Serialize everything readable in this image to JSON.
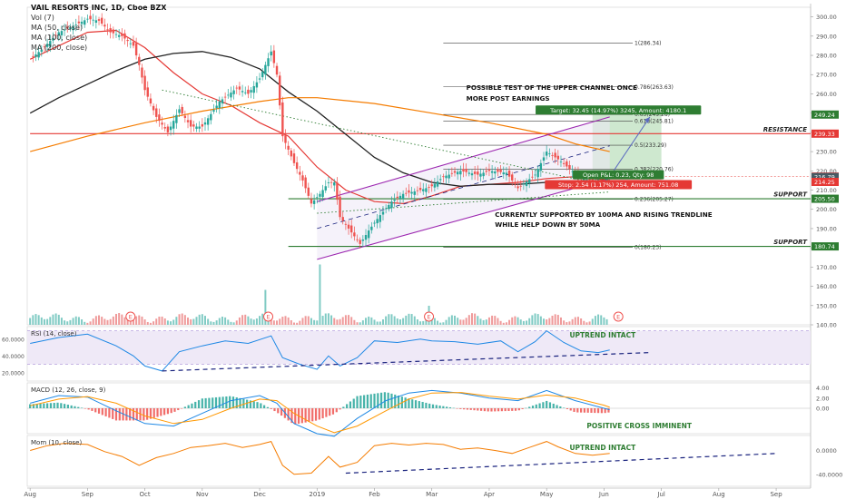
{
  "header": {
    "title": "VAIL RESORTS INC, 1D, Cboe BZX",
    "indicators": [
      "Vol (7)",
      "MA (50, close)",
      "MA (100, close)",
      "MA (200, close)"
    ]
  },
  "colors": {
    "up": "#26a69a",
    "down": "#ef5350",
    "ma50": "#e53935",
    "ma100": "#212121",
    "ma200": "#f57c00",
    "channel": "#9c27b0",
    "resistance": "#e53935",
    "support": "#2e7d32",
    "dashed": "#1a237e",
    "rsi_fill": "#ede7f6",
    "target_fill": "#a5d6a7",
    "stop_fill": "#ef9a9a"
  },
  "chart_data": [
    {
      "type": "line",
      "panel": "price",
      "title": "VAIL RESORTS INC, 1D, Cboe BZX",
      "ylim": [
        140,
        305
      ],
      "y_ticks": [
        300,
        290,
        280,
        270,
        260,
        250,
        240,
        230,
        220,
        210,
        200,
        190,
        180,
        170,
        160,
        150,
        140
      ],
      "y_tick_labels": [
        "300.00",
        "290.00",
        "280.00",
        "270.00",
        "260.00",
        "250.00",
        "240.00",
        "230.00",
        "220.00",
        "210.00",
        "200.00",
        "190.00",
        "180.00",
        "170.00",
        "160.00",
        "150.00",
        "140.00"
      ],
      "x_labels": [
        {
          "label": "Aug",
          "t": 0
        },
        {
          "label": "Sep",
          "t": 1
        },
        {
          "label": "Oct",
          "t": 2
        },
        {
          "label": "Nov",
          "t": 3
        },
        {
          "label": "Dec",
          "t": 4
        },
        {
          "label": "2019",
          "t": 5
        },
        {
          "label": "Feb",
          "t": 6
        },
        {
          "label": "Mar",
          "t": 7
        },
        {
          "label": "Apr",
          "t": 8
        },
        {
          "label": "May",
          "t": 9
        },
        {
          "label": "Jun",
          "t": 10
        },
        {
          "label": "Jul",
          "t": 11
        },
        {
          "label": "Aug",
          "t": 12
        },
        {
          "label": "Sep",
          "t": 13
        }
      ],
      "x_range": [
        -0.05,
        13.6
      ],
      "last_t": 10.1,
      "close_path": [
        [
          0,
          278
        ],
        [
          0.2,
          283
        ],
        [
          0.5,
          292
        ],
        [
          0.8,
          296
        ],
        [
          1,
          299
        ],
        [
          1.2,
          298
        ],
        [
          1.4,
          292
        ],
        [
          1.6,
          290
        ],
        [
          1.8,
          285
        ],
        [
          1.9,
          275
        ],
        [
          2,
          262
        ],
        [
          2.2,
          248
        ],
        [
          2.4,
          240
        ],
        [
          2.6,
          252
        ],
        [
          2.8,
          243
        ],
        [
          3,
          243
        ],
        [
          3.3,
          256
        ],
        [
          3.6,
          263
        ],
        [
          3.8,
          260
        ],
        [
          4,
          268
        ],
        [
          4.2,
          282
        ],
        [
          4.3,
          270
        ],
        [
          4.4,
          238
        ],
        [
          4.6,
          224
        ],
        [
          4.75,
          215
        ],
        [
          4.9,
          203
        ],
        [
          5.05,
          208
        ],
        [
          5.2,
          214
        ],
        [
          5.3,
          214
        ],
        [
          5.4,
          196
        ],
        [
          5.6,
          188
        ],
        [
          5.75,
          182
        ],
        [
          5.9,
          189
        ],
        [
          6.1,
          197
        ],
        [
          6.3,
          204
        ],
        [
          6.5,
          208
        ],
        [
          6.8,
          210
        ],
        [
          7,
          212
        ],
        [
          7.2,
          217
        ],
        [
          7.5,
          220
        ],
        [
          7.8,
          218
        ],
        [
          8,
          220
        ],
        [
          8.3,
          219
        ],
        [
          8.5,
          211
        ],
        [
          8.8,
          218
        ],
        [
          9,
          230
        ],
        [
          9.2,
          226
        ],
        [
          9.4,
          221
        ],
        [
          9.6,
          216
        ],
        [
          9.8,
          215
        ],
        [
          10,
          216
        ],
        [
          10.1,
          217
        ]
      ],
      "ma_lines": [
        {
          "name": "MA (50, close)",
          "color": "#e53935",
          "points": [
            [
              0,
              278
            ],
            [
              1,
              292
            ],
            [
              1.5,
              293
            ],
            [
              2,
              284
            ],
            [
              2.5,
              271
            ],
            [
              3,
              260
            ],
            [
              3.5,
              254
            ],
            [
              4,
              245
            ],
            [
              4.5,
              238
            ],
            [
              5,
              222
            ],
            [
              5.5,
              210
            ],
            [
              6,
              204
            ],
            [
              6.5,
              203
            ],
            [
              7,
              207
            ],
            [
              7.5,
              212
            ],
            [
              8,
              213
            ],
            [
              8.5,
              214
            ],
            [
              9,
              216
            ],
            [
              9.5,
              217
            ],
            [
              10.1,
              215
            ]
          ]
        },
        {
          "name": "MA (100, close)",
          "color": "#212121",
          "points": [
            [
              0,
              250
            ],
            [
              0.5,
              258
            ],
            [
              1,
              265
            ],
            [
              1.5,
              272
            ],
            [
              2,
              278
            ],
            [
              2.5,
              281
            ],
            [
              3,
              282
            ],
            [
              3.5,
              279
            ],
            [
              4,
              273
            ],
            [
              4.5,
              261
            ],
            [
              5,
              251
            ],
            [
              5.5,
              239
            ],
            [
              6,
              227
            ],
            [
              6.5,
              219
            ],
            [
              7,
              214
            ],
            [
              7.5,
              212
            ],
            [
              8,
              213
            ],
            [
              8.5,
              213
            ],
            [
              9,
              214
            ],
            [
              9.5,
              214
            ],
            [
              10.1,
              214
            ]
          ]
        },
        {
          "name": "MA (200, close)",
          "color": "#f57c00",
          "points": [
            [
              0,
              230
            ],
            [
              1,
              238
            ],
            [
              2,
              245
            ],
            [
              3,
              251
            ],
            [
              4,
              256
            ],
            [
              4.5,
              258
            ],
            [
              5,
              258
            ],
            [
              6,
              255
            ],
            [
              7,
              250
            ],
            [
              8,
              245
            ],
            [
              9,
              239
            ],
            [
              9.5,
              234
            ],
            [
              10.1,
              230
            ]
          ]
        }
      ],
      "horizontal_lines": [
        {
          "label": "RESISTANCE",
          "value": 239.33,
          "color": "#e53935",
          "t_start": 0
        },
        {
          "label": "SUPPORT",
          "value": 205.5,
          "color": "#2e7d32",
          "t_start": 4.5
        },
        {
          "label": "SUPPORT",
          "value": 180.74,
          "color": "#2e7d32",
          "t_start": 4.5
        }
      ],
      "fib_levels": [
        {
          "label": "1(286.34)",
          "value": 286.34
        },
        {
          "label": "0.786(263.63)",
          "value": 263.63
        },
        {
          "label": "0.65(249.28)",
          "value": 249.28
        },
        {
          "label": "0.618(245.81)",
          "value": 245.81
        },
        {
          "label": "0.5(233.29)",
          "value": 233.29
        },
        {
          "label": "0.382(220.76)",
          "value": 220.76
        },
        {
          "label": "0.236(205.27)",
          "value": 205.27
        },
        {
          "label": "0(180.23)",
          "value": 180.23
        }
      ],
      "fib_t_range": [
        7.2,
        10.5
      ],
      "channel": {
        "upper": [
          [
            5,
            204
          ],
          [
            10.1,
            248
          ]
        ],
        "mid": [
          [
            5,
            190
          ],
          [
            10.1,
            233
          ]
        ],
        "lower": [
          [
            5,
            174
          ],
          [
            10.1,
            216
          ]
        ]
      },
      "trend_dotted": [
        [
          2.3,
          262
        ],
        [
          10.1,
          212
        ]
      ],
      "trend_dotted_support": [
        [
          5,
          198
        ],
        [
          10.1,
          209
        ]
      ],
      "projection": [
        [
          10.1,
          217
        ],
        [
          10.8,
          248
        ]
      ],
      "position": {
        "entry": 217.02,
        "target": 249.24,
        "stop": 214.25,
        "t_start": 9.8,
        "t_end": 11.0,
        "target_label": "Target: 32.45 (14.97%) 3245, Amount: 4180.1",
        "pnl_label": "Open P&L: 0.23, Qty: 98",
        "stop_label": "Stop: 2.54 (1.17%) 254, Amount: 751.08"
      },
      "price_tags": [
        {
          "value": 249.24,
          "label": "249.24",
          "color": "#2e7d32"
        },
        {
          "value": 239.33,
          "label": "239.33",
          "color": "#e53935"
        },
        {
          "value": 217.02,
          "label": "217.02",
          "color": "#e53935"
        },
        {
          "value": 216.79,
          "label": "216.79",
          "color": "#455a64"
        },
        {
          "value": 214.25,
          "label": "214.25",
          "color": "#e53935"
        },
        {
          "value": 205.5,
          "label": "205.50",
          "color": "#2e7d32"
        },
        {
          "value": 180.74,
          "label": "180.74",
          "color": "#2e7d32"
        }
      ],
      "annotations": [
        {
          "text": "POSSIBLE TEST OF THE UPPER CHANNEL ONCE",
          "t": 7.6,
          "value": 262
        },
        {
          "text": "MORE POST EARNINGS",
          "t": 7.6,
          "value": 256.5
        },
        {
          "text": "CURRENTLY SUPPORTED BY 100MA AND RISING TRENDLINE",
          "t": 8.1,
          "value": 196
        },
        {
          "text": "WHILE HELP DOWN BY 50MA",
          "t": 8.1,
          "value": 191
        }
      ],
      "earnings_markers": [
        {
          "label": "E",
          "t": 1.75
        },
        {
          "label": "E",
          "t": 4.15
        },
        {
          "label": "E",
          "t": 6.95
        },
        {
          "label": "E",
          "t": 10.25
        }
      ],
      "volume_spikes": [
        [
          4.1,
          0.55
        ],
        [
          5.05,
          0.95
        ],
        [
          6.95,
          0.3
        ]
      ]
    },
    {
      "type": "line",
      "panel": "rsi",
      "title": "RSI (14, close)",
      "ylim": [
        10,
        75
      ],
      "y_ticks": [
        60,
        40,
        20
      ],
      "y_tick_labels": [
        "60.0000",
        "40.0000",
        "20.0000"
      ],
      "band": [
        30,
        70
      ],
      "points": [
        [
          0,
          55
        ],
        [
          0.5,
          62
        ],
        [
          1,
          66
        ],
        [
          1.5,
          52
        ],
        [
          1.8,
          40
        ],
        [
          2,
          28
        ],
        [
          2.3,
          22
        ],
        [
          2.6,
          45
        ],
        [
          3,
          52
        ],
        [
          3.4,
          58
        ],
        [
          3.8,
          55
        ],
        [
          4.2,
          64
        ],
        [
          4.4,
          38
        ],
        [
          4.7,
          30
        ],
        [
          5,
          24
        ],
        [
          5.2,
          40
        ],
        [
          5.4,
          28
        ],
        [
          5.7,
          38
        ],
        [
          6,
          58
        ],
        [
          6.4,
          56
        ],
        [
          6.8,
          60
        ],
        [
          7,
          58
        ],
        [
          7.4,
          57
        ],
        [
          7.8,
          54
        ],
        [
          8.2,
          58
        ],
        [
          8.5,
          45
        ],
        [
          8.8,
          57
        ],
        [
          9,
          70
        ],
        [
          9.3,
          56
        ],
        [
          9.6,
          46
        ],
        [
          9.9,
          44
        ],
        [
          10.1,
          47
        ]
      ],
      "annotation": "UPTREND INTACT",
      "trendline": [
        [
          2.3,
          22
        ],
        [
          10.8,
          44
        ]
      ]
    },
    {
      "type": "bar",
      "panel": "macd",
      "title": "MACD (12, 26, close, 9)",
      "ylim": [
        -5,
        5
      ],
      "y_ticks": [
        4,
        2,
        0
      ],
      "y_tick_labels": [
        "4.00",
        "2.00",
        "0.00"
      ],
      "macd": [
        [
          0,
          1
        ],
        [
          0.5,
          2.5
        ],
        [
          1,
          2.2
        ],
        [
          1.5,
          -0.5
        ],
        [
          2,
          -3
        ],
        [
          2.5,
          -3.5
        ],
        [
          3,
          -1
        ],
        [
          3.5,
          1.5
        ],
        [
          4,
          2.5
        ],
        [
          4.3,
          1
        ],
        [
          4.6,
          -3
        ],
        [
          5,
          -5
        ],
        [
          5.3,
          -5.5
        ],
        [
          5.7,
          -2
        ],
        [
          6.2,
          1.5
        ],
        [
          6.6,
          3
        ],
        [
          7,
          3.5
        ],
        [
          7.5,
          3
        ],
        [
          8,
          2
        ],
        [
          8.5,
          1.5
        ],
        [
          9,
          3.5
        ],
        [
          9.5,
          1.5
        ],
        [
          10,
          0
        ],
        [
          10.1,
          -0.3
        ]
      ],
      "signal": [
        [
          0,
          0.5
        ],
        [
          0.5,
          1.8
        ],
        [
          1,
          2.3
        ],
        [
          1.5,
          1
        ],
        [
          2,
          -1.5
        ],
        [
          2.5,
          -3
        ],
        [
          3,
          -2.2
        ],
        [
          3.5,
          0
        ],
        [
          4,
          1.8
        ],
        [
          4.3,
          1.5
        ],
        [
          4.6,
          -1
        ],
        [
          5,
          -3.5
        ],
        [
          5.3,
          -4.8
        ],
        [
          5.7,
          -3.5
        ],
        [
          6.2,
          -0.5
        ],
        [
          6.6,
          1.8
        ],
        [
          7,
          3
        ],
        [
          7.5,
          3.1
        ],
        [
          8,
          2.4
        ],
        [
          8.5,
          1.8
        ],
        [
          9,
          2.6
        ],
        [
          9.5,
          2
        ],
        [
          10,
          0.6
        ],
        [
          10.1,
          0.2
        ]
      ],
      "annotation": "POSITIVE CROSS IMMINENT"
    },
    {
      "type": "line",
      "panel": "mom",
      "title": "Mom (10, close)",
      "ylim": [
        -60,
        25
      ],
      "y_ticks": [
        0,
        -40
      ],
      "y_tick_labels": [
        "0.0000",
        "-40.0000"
      ],
      "points": [
        [
          0,
          0
        ],
        [
          0.3,
          8
        ],
        [
          0.6,
          12
        ],
        [
          1,
          10
        ],
        [
          1.3,
          -2
        ],
        [
          1.6,
          -10
        ],
        [
          1.9,
          -25
        ],
        [
          2.2,
          -12
        ],
        [
          2.5,
          -5
        ],
        [
          2.8,
          5
        ],
        [
          3.1,
          8
        ],
        [
          3.4,
          12
        ],
        [
          3.7,
          5
        ],
        [
          4,
          10
        ],
        [
          4.2,
          15
        ],
        [
          4.4,
          -25
        ],
        [
          4.6,
          -40
        ],
        [
          4.9,
          -38
        ],
        [
          5.2,
          -10
        ],
        [
          5.4,
          -28
        ],
        [
          5.7,
          -20
        ],
        [
          6,
          8
        ],
        [
          6.3,
          12
        ],
        [
          6.6,
          9
        ],
        [
          6.9,
          12
        ],
        [
          7.2,
          10
        ],
        [
          7.5,
          2
        ],
        [
          7.8,
          4
        ],
        [
          8.1,
          0
        ],
        [
          8.4,
          -5
        ],
        [
          8.7,
          5
        ],
        [
          9,
          15
        ],
        [
          9.2,
          6
        ],
        [
          9.5,
          -5
        ],
        [
          9.8,
          -8
        ],
        [
          10.1,
          -5
        ]
      ],
      "annotation": "UPTREND INTACT",
      "trendline": [
        [
          5.5,
          -38
        ],
        [
          13.0,
          -5
        ]
      ]
    }
  ]
}
